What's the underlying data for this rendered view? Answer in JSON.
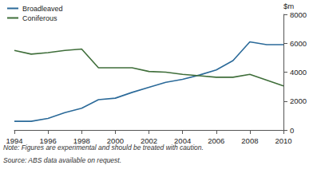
{
  "chart_data": {
    "type": "line",
    "y_label": "$m",
    "x": [
      1994,
      1995,
      1996,
      1997,
      1998,
      1999,
      2000,
      2001,
      2002,
      2003,
      2004,
      2005,
      2006,
      2007,
      2008,
      2009,
      2010
    ],
    "series": [
      {
        "name": "Broadleaved",
        "color": "#2b6a99",
        "values": [
          600,
          600,
          800,
          1200,
          1500,
          2100,
          2200,
          2600,
          2950,
          3300,
          3500,
          3800,
          4150,
          4800,
          6100,
          5900,
          5900
        ]
      },
      {
        "name": "Coniferous",
        "color": "#3f6e3a",
        "values": [
          5500,
          5250,
          5350,
          5500,
          5600,
          4300,
          4300,
          4300,
          4050,
          4000,
          3850,
          3750,
          3650,
          3650,
          3850,
          3450,
          3050
        ]
      }
    ],
    "xlim": [
      1994,
      2010
    ],
    "xticks": [
      1994,
      1996,
      1998,
      2000,
      2002,
      2004,
      2006,
      2008,
      2010
    ],
    "ylim": [
      0,
      8000
    ],
    "yticks": [
      0,
      2000,
      4000,
      6000,
      8000
    ],
    "grid": false,
    "legend": "top-left",
    "annotations": [
      "Note: Figures are experimental and should be treated with caution.",
      "Source: ABS data available on request."
    ]
  }
}
